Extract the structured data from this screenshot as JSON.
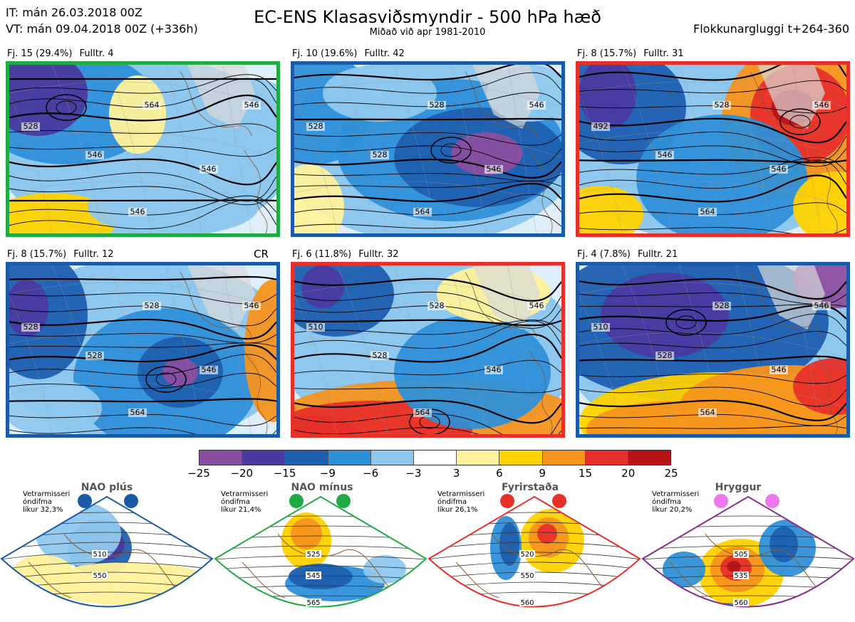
{
  "header": {
    "it": "IT: mán 26.03.2018 00Z",
    "vt": "VT: mán 09.04.2018 00Z  (+336h)",
    "title": "EC-ENS Klasasviðsmyndir - 500 hPa hæð",
    "subtitle": "Miðað við apr 1981-2010",
    "window": "Flokkunargluggi t+264-360"
  },
  "panels": [
    {
      "label": "Fj. 15 (29.4%)",
      "count": "Fulltr. 4",
      "border": "#22aa44",
      "contours": [
        "528",
        "546",
        "564",
        "546",
        "546",
        "546"
      ]
    },
    {
      "label": "Fj. 10 (19.6%)",
      "count": "Fulltr. 42",
      "border": "#1a5aa8",
      "contours": [
        "528",
        "528",
        "528",
        "546",
        "546",
        "564"
      ]
    },
    {
      "label": "Fj. 8 (15.7%)",
      "count": "Fulltr. 31",
      "border": "#e8302a",
      "contours": [
        "492",
        "546",
        "528",
        "546",
        "546",
        "564"
      ]
    },
    {
      "label": "Fj. 8 (15.7%)",
      "count": "Fulltr. 12",
      "border": "#1a5aa8",
      "contours": [
        "528",
        "528",
        "528",
        "546",
        "546",
        "564"
      ]
    },
    {
      "label": "Fj. 6 (11.8%)",
      "count": "Fulltr. 32",
      "border": "#e8302a",
      "contours": [
        "510",
        "528",
        "528",
        "546",
        "546",
        "564"
      ]
    },
    {
      "label": "Fj. 4 (7.8%)",
      "count": "Fulltr. 21",
      "border": "#1a5aa8",
      "contours": [
        "510",
        "528",
        "528",
        "546",
        "546",
        "564"
      ]
    }
  ],
  "cr_label": "CR",
  "colorbar": {
    "colors": [
      "#8a4ea0",
      "#4a3aa0",
      "#1f5fb0",
      "#2f90d8",
      "#8fc8ee",
      "#ffffff",
      "#fff29a",
      "#ffd200",
      "#f7941d",
      "#e8302a",
      "#b81418"
    ],
    "ticks": [
      "−25",
      "−20",
      "−15",
      "−9",
      "−6",
      "−3",
      "3",
      "6",
      "9",
      "15",
      "20",
      "25"
    ]
  },
  "regimes": [
    {
      "name": "NAO plús",
      "prob": "Vetrarmisseri\nóndifma\nlíkur 32,3%",
      "border": "#1a5aa8",
      "dot": "#1a5aa8",
      "contours": [
        "510",
        "550"
      ]
    },
    {
      "name": "NAO mínus",
      "prob": "Vetrarmisseri\nóndifma\nlíkur 21,4%",
      "border": "#22aa44",
      "dot": "#22aa44",
      "contours": [
        "525",
        "545",
        "565"
      ]
    },
    {
      "name": "Fyrirstaða",
      "prob": "Vetrarmisseri\nóndifma\nlíkur 26,1%",
      "border": "#e8302a",
      "dot": "#e8302a",
      "contours": [
        "520",
        "550",
        "560"
      ]
    },
    {
      "name": "Hryggur",
      "prob": "Vetrarmisseri\nóndifma\nlíkur 20,2%",
      "border": "#8a2a90",
      "dot": "#ee77ee",
      "contours": [
        "505",
        "535",
        "560"
      ]
    }
  ]
}
